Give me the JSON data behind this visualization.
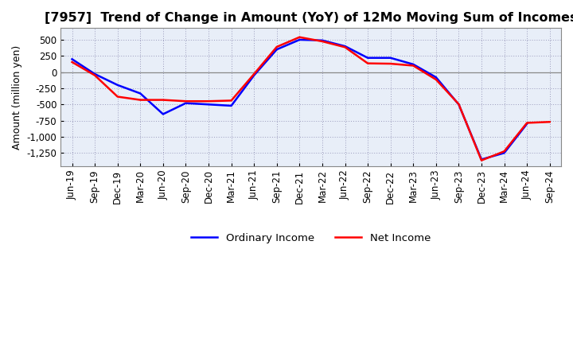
{
  "title": "[7957]  Trend of Change in Amount (YoY) of 12Mo Moving Sum of Incomes",
  "ylabel": "Amount (million yen)",
  "x_labels": [
    "Jun-19",
    "Sep-19",
    "Dec-19",
    "Mar-20",
    "Jun-20",
    "Sep-20",
    "Dec-20",
    "Mar-21",
    "Jun-21",
    "Sep-21",
    "Dec-21",
    "Mar-22",
    "Jun-22",
    "Sep-22",
    "Dec-22",
    "Mar-23",
    "Jun-23",
    "Sep-23",
    "Dec-23",
    "Mar-24",
    "Jun-24",
    "Sep-24"
  ],
  "ordinary_income": [
    200,
    -30,
    -200,
    -330,
    -650,
    -480,
    -500,
    -520,
    -50,
    350,
    500,
    490,
    400,
    220,
    220,
    120,
    -80,
    -500,
    -1350,
    -1250,
    -800,
    null
  ],
  "net_income": [
    155,
    -50,
    -380,
    -430,
    -430,
    -450,
    -450,
    -440,
    -30,
    390,
    540,
    475,
    385,
    135,
    130,
    100,
    -115,
    -495,
    -1365,
    -1225,
    -785,
    -770
  ],
  "ylim": [
    -1450,
    680
  ],
  "yticks": [
    500,
    250,
    0,
    -250,
    -500,
    -750,
    -1000,
    -1250
  ],
  "line_color_ordinary": "#0000FF",
  "line_color_net": "#FF0000",
  "bg_color": "#FFFFFF",
  "plot_bg_color": "#E8EEF8",
  "grid_color": "#9999BB",
  "zero_line_color": "#888888",
  "title_fontsize": 11.5,
  "axis_label_fontsize": 9,
  "tick_fontsize": 8.5,
  "legend_fontsize": 9.5,
  "linewidth": 1.8
}
